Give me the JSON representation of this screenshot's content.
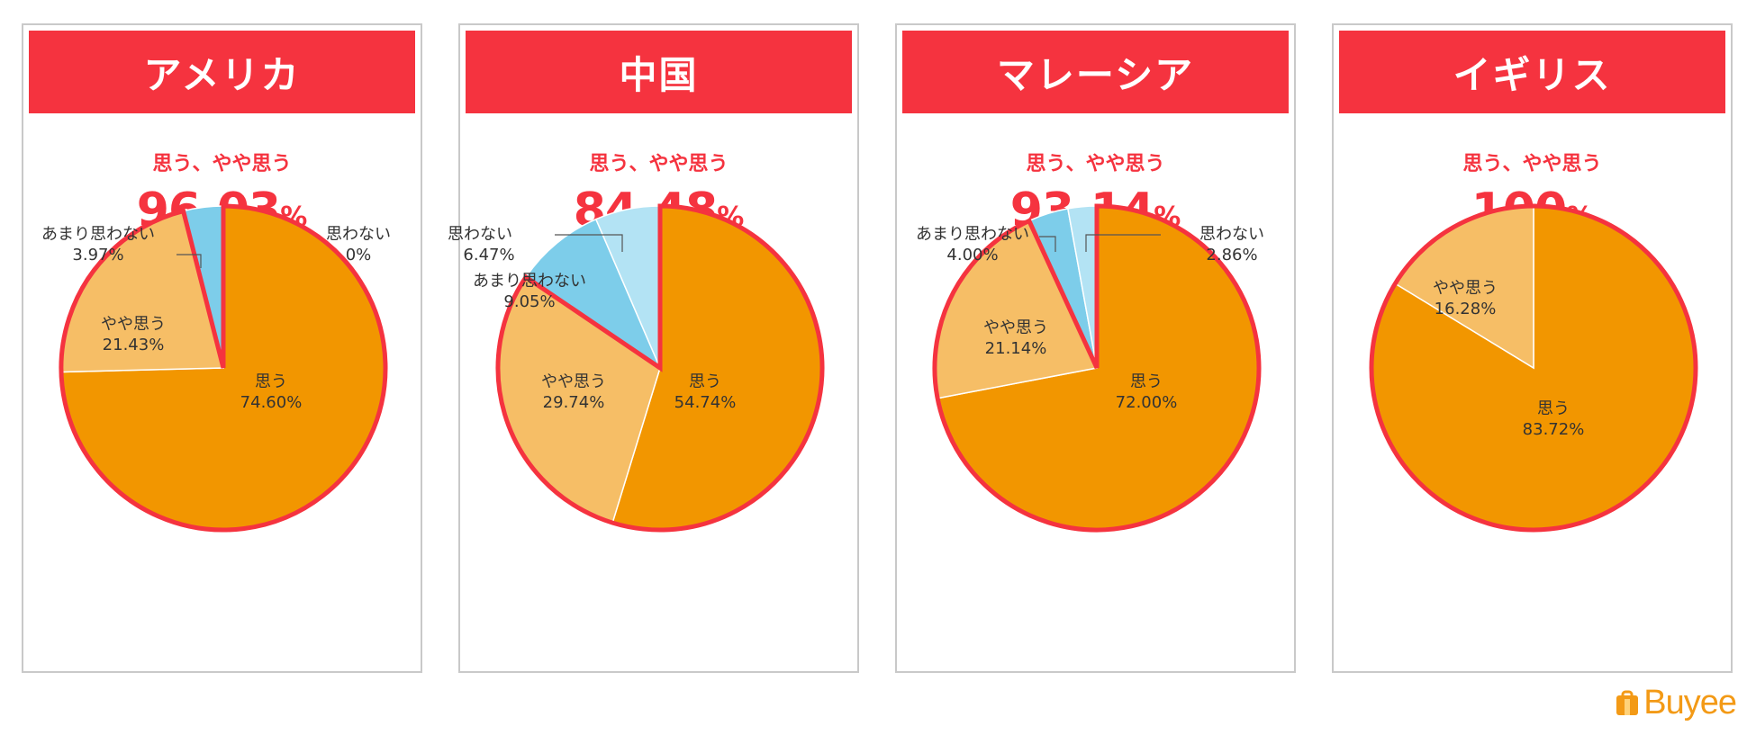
{
  "summary_label": "思う、やや思う",
  "percent_unit": "%",
  "brand": "Buyee",
  "colors": {
    "accent": "#f5333f",
    "agree": "#f29600",
    "somewhat_agree": "#f6be66",
    "somewhat_disagree": "#7dcdea",
    "disagree": "#b3e3f4",
    "border": "#f5333f",
    "brand": "#f39a16"
  },
  "chart_data": [
    {
      "type": "pie",
      "title": "アメリカ",
      "summary_value": "96.03",
      "slices": [
        {
          "label": "思う",
          "value": 74.6,
          "display": "74.60%",
          "color": "#f29600"
        },
        {
          "label": "やや思う",
          "value": 21.43,
          "display": "21.43%",
          "color": "#f6be66"
        },
        {
          "label": "あまり思わない",
          "value": 3.97,
          "display": "3.97%",
          "color": "#7dcdea"
        },
        {
          "label": "思わない",
          "value": 0,
          "display": "0%",
          "color": "#b3e3f4"
        }
      ]
    },
    {
      "type": "pie",
      "title": "中国",
      "summary_value": "84.48",
      "slices": [
        {
          "label": "思う",
          "value": 54.74,
          "display": "54.74%",
          "color": "#f29600"
        },
        {
          "label": "やや思う",
          "value": 29.74,
          "display": "29.74%",
          "color": "#f6be66"
        },
        {
          "label": "あまり思わない",
          "value": 9.05,
          "display": "9.05%",
          "color": "#7dcdea"
        },
        {
          "label": "思わない",
          "value": 6.47,
          "display": "6.47%",
          "color": "#b3e3f4"
        }
      ]
    },
    {
      "type": "pie",
      "title": "マレーシア",
      "summary_value": "93.14",
      "slices": [
        {
          "label": "思う",
          "value": 72.0,
          "display": "72.00%",
          "color": "#f29600"
        },
        {
          "label": "やや思う",
          "value": 21.14,
          "display": "21.14%",
          "color": "#f6be66"
        },
        {
          "label": "あまり思わない",
          "value": 4.0,
          "display": "4.00%",
          "color": "#7dcdea"
        },
        {
          "label": "思わない",
          "value": 2.86,
          "display": "2.86%",
          "color": "#b3e3f4"
        }
      ]
    },
    {
      "type": "pie",
      "title": "イギリス",
      "summary_value": "100",
      "slices": [
        {
          "label": "思う",
          "value": 83.72,
          "display": "83.72%",
          "color": "#f29600"
        },
        {
          "label": "やや思う",
          "value": 16.28,
          "display": "16.28%",
          "color": "#f6be66"
        }
      ]
    }
  ]
}
